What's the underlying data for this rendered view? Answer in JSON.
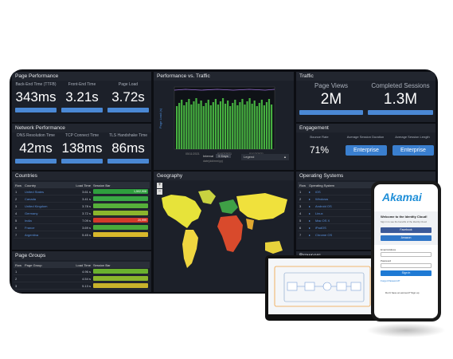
{
  "page_performance": {
    "title": "Page Performance",
    "kpis": [
      {
        "label": "Back-End Time (TTFB)",
        "value": "343ms"
      },
      {
        "label": "Front-End Time",
        "value": "3.21s"
      },
      {
        "label": "Page Load",
        "value": "3.72s"
      }
    ]
  },
  "network_performance": {
    "title": "Network Performance",
    "kpis": [
      {
        "label": "DNS Resolution Time",
        "value": "42ms"
      },
      {
        "label": "TCP Connect Time",
        "value": "138ms"
      },
      {
        "label": "TLS Handshake Time",
        "value": "86ms"
      }
    ]
  },
  "perf_traffic": {
    "title": "Performance vs. Traffic",
    "ylabel": "Page Load (s)",
    "interval_label": "Interval",
    "interval_value": "5 Days",
    "legend_label": "Legend",
    "xlabel": "date(dd/mm/yy)"
  },
  "traffic": {
    "title": "Traffic",
    "page_views_label": "Page Views",
    "page_views_value": "2M",
    "completed_sessions_label": "Completed Sessions",
    "completed_sessions_value": "1.3M"
  },
  "engagement": {
    "title": "Engagement",
    "bounce_label": "Bounce Rate",
    "bounce_value": "71%",
    "avg_session_label": "Average Session Duration",
    "avg_page_label": "Average Session Length",
    "enterprise_label": "Enterprise"
  },
  "countries": {
    "title": "Countries",
    "headers": [
      "Row",
      "Country",
      "Load Time",
      "Session Bar"
    ],
    "rows": [
      {
        "n": "1",
        "name": "United States",
        "time": "3.61 s",
        "bar": "1,502,908",
        "color": "#2f9e3e"
      },
      {
        "n": "2",
        "name": "Canada",
        "time": "3.41 s",
        "bar": "",
        "color": "#3aa845"
      },
      {
        "n": "3",
        "name": "United Kingdom",
        "time": "3.78 s",
        "bar": "",
        "color": "#56b03a"
      },
      {
        "n": "4",
        "name": "Germany",
        "time": "3.72 s",
        "bar": "",
        "color": "#8bb52d"
      },
      {
        "n": "5",
        "name": "India",
        "time": "7.09 s",
        "bar": "20,999",
        "color": "#d23a2a"
      },
      {
        "n": "6",
        "name": "France",
        "time": "3.69 s",
        "bar": "",
        "color": "#4aa93a"
      },
      {
        "n": "7",
        "name": "Argentina",
        "time": "5.45 s",
        "bar": "",
        "color": "#d8b82c"
      }
    ]
  },
  "page_groups": {
    "title": "Page Groups",
    "headers": [
      "Row",
      "Page Group",
      "Load Time",
      "Session Bar"
    ],
    "rows": [
      {
        "n": "1",
        "name": "",
        "time": "4.96 s",
        "bar": "",
        "color": "#6ab02e"
      },
      {
        "n": "2",
        "name": "",
        "time": "4.54 s",
        "bar": "",
        "color": "#8ab52c"
      },
      {
        "n": "3",
        "name": "",
        "time": "5.13 s",
        "bar": "",
        "color": "#c8b22b"
      }
    ]
  },
  "geography": {
    "title": "Geography"
  },
  "operating_systems": {
    "title": "Operating Systems",
    "headers": [
      "Row",
      "Operating System"
    ],
    "rows": [
      {
        "n": "1",
        "name": "iOS"
      },
      {
        "n": "2",
        "name": "Windows"
      },
      {
        "n": "3",
        "name": "Android OS"
      },
      {
        "n": "4",
        "name": "Linux"
      },
      {
        "n": "5",
        "name": "Mac OS X"
      },
      {
        "n": "6",
        "name": "iPadOS"
      },
      {
        "n": "7",
        "name": "Chrome OS"
      }
    ]
  },
  "browsers": {
    "title": "Browsers"
  },
  "phone": {
    "brand": "Akamai",
    "welcome": "Welcome to the Identity Cloud!",
    "sub": "Sign in to see the benefits of the Identity Cloud",
    "facebook": "Facebook",
    "amazon": "Amazon",
    "email_label": "Email Address",
    "password_label": "Password",
    "signin": "Sign in",
    "forgot": "Forgot Password?",
    "noaccount": "Don't have an account? Sign up"
  }
}
